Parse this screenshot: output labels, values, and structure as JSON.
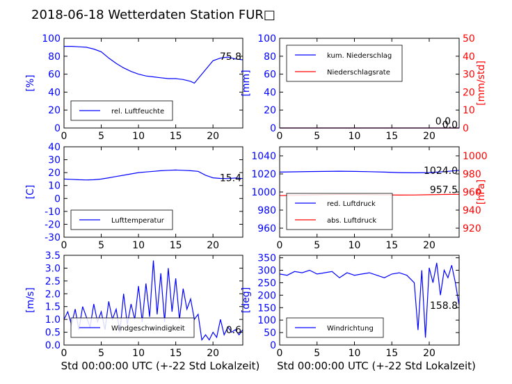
{
  "title": "2018-06-18 Wetterdaten Station FUR□",
  "colors": {
    "primary": "#0000ff",
    "secondary": "#ff0000",
    "axis": "#000000"
  },
  "chart_data": [
    {
      "id": "humidity",
      "type": "line",
      "ylabel": "[%]",
      "xlim": [
        0,
        24
      ],
      "ylim": [
        0,
        100
      ],
      "xticks": [
        0,
        5,
        10,
        15,
        20
      ],
      "yticks": [
        0,
        20,
        40,
        60,
        80,
        100
      ],
      "last_value": "75.8",
      "legend": "top-left-lower",
      "series": [
        {
          "name": "rel. Luftfeuchte",
          "color": "#0000ff",
          "x": [
            0,
            1,
            2,
            3,
            4,
            5,
            6,
            7,
            8,
            9,
            10,
            11,
            12,
            13,
            14,
            15,
            16,
            17,
            17.5,
            18,
            19,
            20,
            21,
            22,
            23,
            24
          ],
          "y": [
            91,
            91,
            90.5,
            90,
            88,
            85,
            78,
            72,
            67,
            63,
            60,
            58,
            57,
            56,
            55,
            55,
            54,
            52,
            50,
            55,
            65,
            75,
            78,
            79,
            77,
            76
          ]
        }
      ]
    },
    {
      "id": "precip",
      "type": "line",
      "ylabel": "[mm]",
      "ylabel2": "[mm/std]",
      "xlim": [
        0,
        24
      ],
      "ylim": [
        0,
        100
      ],
      "ylim2": [
        0,
        50
      ],
      "xticks": [
        0,
        5,
        10,
        15,
        20
      ],
      "yticks": [
        0,
        20,
        40,
        60,
        80,
        100
      ],
      "yticks2": [
        0,
        10,
        20,
        30,
        40,
        50
      ],
      "last_value": "0.0",
      "last_value2": "0.0",
      "legend": "top-left",
      "series": [
        {
          "name": "kum. Niederschlag",
          "color": "#0000ff",
          "x": [
            0,
            24
          ],
          "y": [
            0,
            0
          ]
        },
        {
          "name": "Niederschlagsrate",
          "color": "#ff0000",
          "x": [
            0,
            24
          ],
          "y": [
            0,
            0
          ]
        }
      ]
    },
    {
      "id": "temperature",
      "type": "line",
      "ylabel": "[C]",
      "xlim": [
        0,
        24
      ],
      "ylim": [
        -30,
        40
      ],
      "xticks": [
        0,
        5,
        10,
        15,
        20
      ],
      "yticks": [
        -30,
        -20,
        -10,
        0,
        10,
        20,
        30,
        40
      ],
      "last_value": "15.4",
      "legend": "bottom-left",
      "series": [
        {
          "name": "Lufttemperatur",
          "color": "#0000ff",
          "x": [
            0,
            1,
            2,
            3,
            4,
            5,
            6,
            7,
            8,
            9,
            10,
            11,
            12,
            13,
            14,
            15,
            16,
            17,
            18,
            19,
            20,
            21,
            22,
            23,
            24
          ],
          "y": [
            15,
            14.8,
            14.5,
            14.3,
            14.5,
            15,
            16,
            17,
            18,
            19,
            20,
            20.5,
            21,
            21.5,
            21.8,
            22,
            21.8,
            21.5,
            21,
            18,
            16,
            15.5,
            15.4,
            15.8,
            15.4
          ]
        }
      ]
    },
    {
      "id": "pressure",
      "type": "line",
      "ylabel2": "[hPa]",
      "xlim": [
        0,
        24
      ],
      "ylim": [
        950,
        1050
      ],
      "ylim2": [
        910,
        1010
      ],
      "xticks": [
        0,
        5,
        10,
        15,
        20
      ],
      "yticks": [
        960,
        980,
        1000,
        1020,
        1040
      ],
      "yticks2": [
        920,
        940,
        960,
        980,
        1000
      ],
      "last_value": "1024.0",
      "last_value2": "957.5",
      "legend": "bottom-left",
      "series": [
        {
          "name": "red. Luftdruck",
          "color": "#0000ff",
          "x": [
            0,
            2,
            4,
            6,
            8,
            10,
            12,
            14,
            16,
            18,
            20,
            22,
            24
          ],
          "y": [
            1022,
            1022.3,
            1022.6,
            1022.8,
            1023,
            1022.8,
            1022.5,
            1022,
            1021.5,
            1021.2,
            1021.5,
            1022.5,
            1024
          ]
        },
        {
          "name": "abs. Luftdruck",
          "color": "#ff0000",
          "x": [
            0,
            2,
            4,
            6,
            8,
            10,
            12,
            14,
            16,
            18,
            20,
            22,
            24
          ],
          "y": [
            956,
            956.3,
            956.6,
            957,
            957.3,
            957.2,
            957,
            956.8,
            956.6,
            956.7,
            957,
            957.3,
            957.5
          ]
        }
      ]
    },
    {
      "id": "windspeed",
      "type": "line",
      "ylabel": "[m/s]",
      "xlabel": "Std 00:00:00 UTC (+-22 Std Lokalzeit)",
      "xlim": [
        0,
        24
      ],
      "ylim": [
        0,
        3.5
      ],
      "xticks": [
        0,
        5,
        10,
        15,
        20
      ],
      "yticks": [
        0,
        0.5,
        1.0,
        1.5,
        2.0,
        2.5,
        3.0,
        3.5
      ],
      "last_value": "0.6",
      "legend": "bottom-left",
      "series": [
        {
          "name": "Windgeschwindigkeit",
          "color": "#0000ff",
          "x": [
            0,
            0.5,
            1,
            1.5,
            2,
            2.5,
            3,
            3.5,
            4,
            4.5,
            5,
            5.5,
            6,
            6.5,
            7,
            7.5,
            8,
            8.5,
            9,
            9.5,
            10,
            10.5,
            11,
            11.5,
            12,
            12.5,
            13,
            13.5,
            14,
            14.5,
            15,
            15.5,
            16,
            16.5,
            17,
            17.5,
            18,
            18.5,
            19,
            19.5,
            20,
            20.5,
            21,
            21.5,
            22,
            22.5,
            23,
            23.5,
            24
          ],
          "y": [
            1.0,
            1.3,
            0.8,
            1.4,
            0.6,
            1.5,
            1.1,
            0.7,
            1.6,
            0.9,
            1.3,
            0.6,
            1.7,
            1.0,
            1.4,
            0.5,
            2.0,
            0.8,
            1.6,
            1.0,
            2.3,
            0.9,
            2.4,
            1.1,
            3.3,
            1.2,
            2.8,
            0.9,
            3.0,
            1.3,
            2.6,
            1.0,
            2.2,
            1.4,
            1.8,
            1.0,
            1.2,
            0.2,
            0.4,
            0.2,
            0.5,
            0.3,
            1.0,
            0.4,
            0.7,
            0.5,
            0.6,
            0.4,
            0.6
          ]
        }
      ]
    },
    {
      "id": "winddir",
      "type": "line",
      "ylabel": "[deg]",
      "xlabel": "Std 00:00:00 UTC (+-22 Std Lokalzeit)",
      "xlim": [
        0,
        24
      ],
      "ylim": [
        0,
        360
      ],
      "xticks": [
        0,
        5,
        10,
        15,
        20
      ],
      "yticks": [
        0,
        50,
        100,
        150,
        200,
        250,
        300,
        350
      ],
      "last_value": "158.8",
      "legend": "bottom-left",
      "series": [
        {
          "name": "Windrichtung",
          "color": "#0000ff",
          "x": [
            0,
            1,
            2,
            3,
            4,
            5,
            6,
            7,
            8,
            9,
            10,
            11,
            12,
            13,
            14,
            15,
            16,
            17,
            18,
            18.5,
            19,
            19.5,
            20,
            20.5,
            21,
            21.5,
            22,
            22.5,
            23,
            23.5,
            24
          ],
          "y": [
            285,
            280,
            295,
            290,
            300,
            285,
            290,
            295,
            270,
            290,
            280,
            285,
            290,
            280,
            270,
            285,
            290,
            280,
            250,
            60,
            300,
            30,
            310,
            250,
            330,
            200,
            300,
            270,
            320,
            250,
            158.8
          ]
        }
      ]
    }
  ]
}
